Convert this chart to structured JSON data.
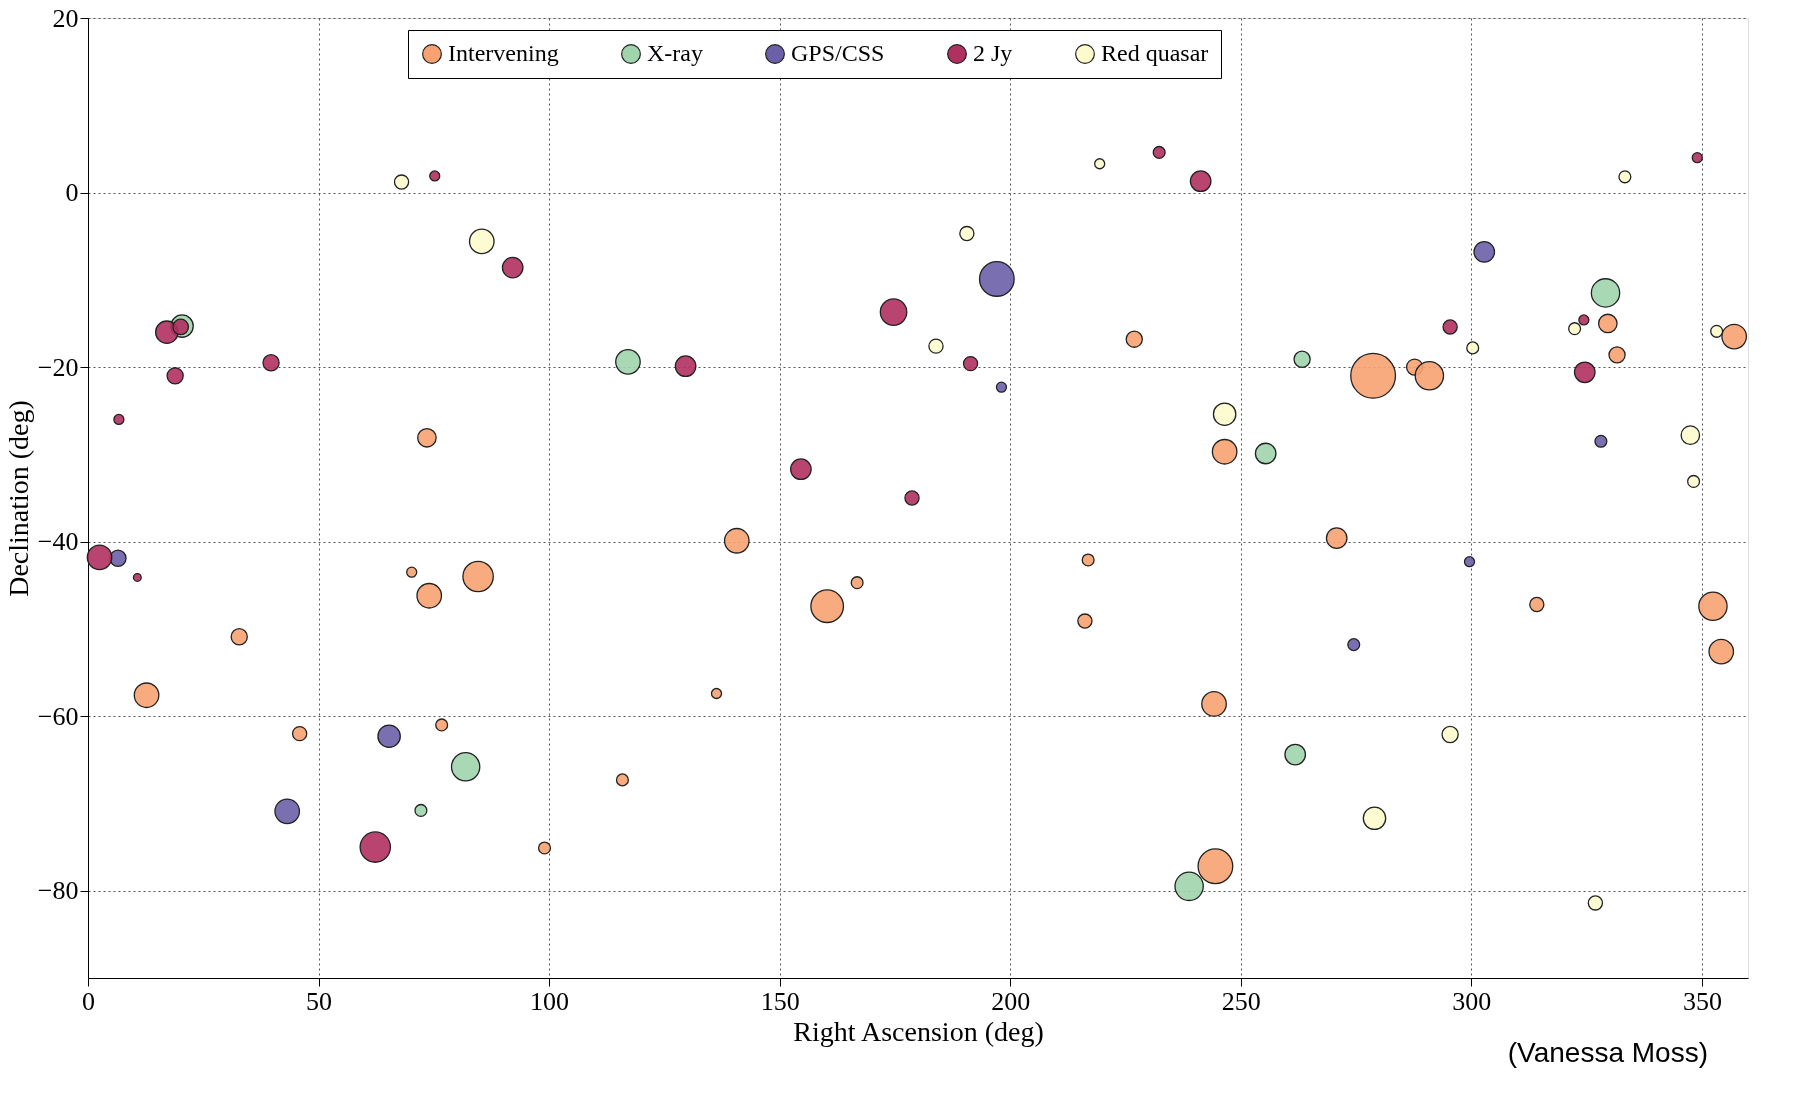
{
  "chart_data": {
    "type": "bubble",
    "xlabel": "Right Ascension (deg)",
    "ylabel": "Declination (deg)",
    "xlim": [
      0,
      360
    ],
    "ylim": [
      -90,
      20
    ],
    "xticks": [
      0,
      50,
      100,
      150,
      200,
      250,
      300,
      350
    ],
    "yticks": [
      -80,
      -60,
      -40,
      -20,
      0,
      20
    ],
    "grid": true,
    "legend": "top",
    "marker": "circle",
    "annotations": [
      "(Vanessa Moss)"
    ],
    "series": [
      {
        "name": "Intervening",
        "color": "#f7a270",
        "x": [
          73.5,
          70.2,
          74,
          84.6,
          32.8,
          12.7,
          45.9,
          76.7,
          115.9,
          99,
          136.3,
          140.7,
          160.3,
          166.8,
          216.9,
          216.2,
          226.9,
          246.5,
          244.2,
          244.5,
          278.7,
          287.7,
          290.9,
          270.8,
          314.2,
          329.6,
          331.6,
          352.4,
          354.2,
          357
        ],
        "values": [
          -28.1,
          -43.5,
          -46.2,
          -44,
          -50.9,
          -57.6,
          -62,
          -61,
          -67.3,
          -75.1,
          -57.4,
          -39.9,
          -47.4,
          -44.7,
          -42.1,
          -49.1,
          -16.8,
          -29.7,
          -58.6,
          -77.2,
          -21,
          -20,
          -21,
          -39.6,
          -47.2,
          -15,
          -18.6,
          -47.4,
          -52.6,
          -16.5
        ],
        "sizes": [
          0.17,
          0.05,
          0.3,
          0.46,
          0.13,
          0.3,
          0.1,
          0.07,
          0.07,
          0.07,
          0.05,
          0.3,
          0.53,
          0.07,
          0.07,
          0.1,
          0.13,
          0.3,
          0.3,
          0.6,
          1,
          0.13,
          0.4,
          0.21,
          0.1,
          0.17,
          0.13,
          0.4,
          0.3,
          0.3
        ]
      },
      {
        "name": "X-ray",
        "color": "#9fd4ac",
        "x": [
          20.4,
          72.2,
          81.9,
          117.1,
          255.4,
          263.3,
          261.8,
          238.8,
          329.1
        ],
        "values": [
          -15.3,
          -70.8,
          -65.8,
          -19.4,
          -29.9,
          -19.1,
          -64.4,
          -79.5,
          -11.5
        ],
        "sizes": [
          0.25,
          0.07,
          0.4,
          0.3,
          0.21,
          0.13,
          0.21,
          0.4,
          0.4
        ]
      },
      {
        "name": "GPS/CSS",
        "color": "#6b5fa8",
        "x": [
          6.5,
          43.2,
          65.3,
          197.1,
          198.1,
          302.8,
          328.1,
          299.6,
          274.5
        ],
        "values": [
          -41.9,
          -70.9,
          -62.3,
          -9.9,
          -22.3,
          -6.8,
          -28.5,
          -42.3,
          -51.8
        ],
        "sizes": [
          0.13,
          0.3,
          0.25,
          0.6,
          0.05,
          0.21,
          0.07,
          0.05,
          0.07
        ]
      },
      {
        "name": "2 Jy",
        "color": "#b0305f",
        "x": [
          2.5,
          10.7,
          6.7,
          17.1,
          20.1,
          18.9,
          39.7,
          75.2,
          92.1,
          62.3,
          129.6,
          154.6,
          174.7,
          178.7,
          191.4,
          232.3,
          241.3,
          295.4,
          324.4,
          324.6,
          349
        ],
        "values": [
          -41.8,
          -44.1,
          -26,
          -16,
          -15.4,
          -21,
          -19.5,
          1.9,
          -8.6,
          -75,
          -19.9,
          -31.7,
          -13.7,
          -35,
          -19.6,
          4.6,
          1.3,
          -15.4,
          -14.6,
          -20.6,
          4
        ],
        "sizes": [
          0.3,
          0.03,
          0.05,
          0.25,
          0.12,
          0.13,
          0.13,
          0.05,
          0.21,
          0.46,
          0.21,
          0.21,
          0.35,
          0.1,
          0.1,
          0.07,
          0.21,
          0.1,
          0.05,
          0.21,
          0.05
        ]
      },
      {
        "name": "Red quasar",
        "color": "#fdfbcc",
        "x": [
          68,
          85.4,
          190.6,
          183.9,
          219.4,
          246.5,
          300.3,
          295.4,
          279,
          322.4,
          333.3,
          353.2,
          347.5,
          348.2,
          326.9
        ],
        "values": [
          1.2,
          -5.6,
          -4.7,
          -17.6,
          3.3,
          -25.4,
          -17.8,
          -62.1,
          -71.7,
          -15.6,
          1.8,
          -15.9,
          -27.8,
          -33.1,
          -81.4
        ],
        "sizes": [
          0.1,
          0.3,
          0.1,
          0.1,
          0.05,
          0.25,
          0.07,
          0.13,
          0.25,
          0.07,
          0.07,
          0.07,
          0.17,
          0.07,
          0.1
        ]
      }
    ]
  }
}
